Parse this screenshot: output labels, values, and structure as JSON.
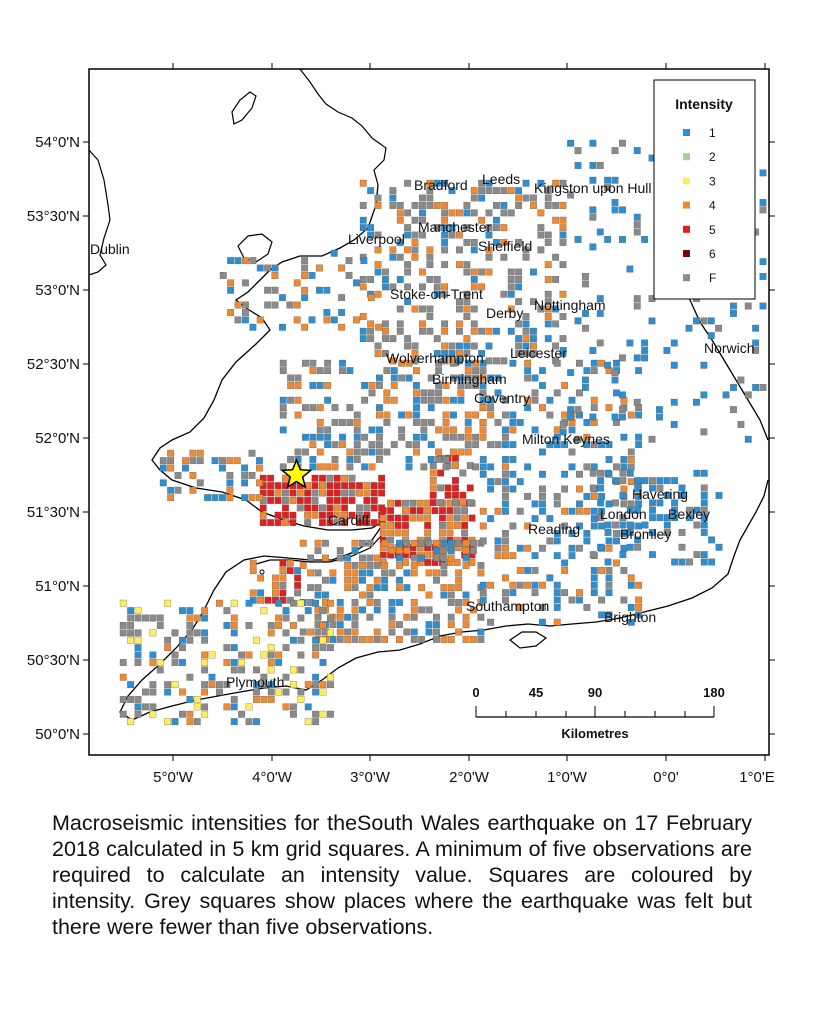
{
  "map": {
    "lat_labels": [
      "54°0'N",
      "53°30'N",
      "53°0'N",
      "52°30'N",
      "52°0'N",
      "51°30'N",
      "51°0'N",
      "50°30'N",
      "50°0'N"
    ],
    "lon_labels": [
      "5°0'W",
      "4°0'W",
      "3°0'W",
      "2°0'W",
      "1°0'W",
      "0°0'",
      "1°0'E"
    ],
    "places": [
      "Dublin",
      "Bradford",
      "Leeds",
      "Kingston upon Hull",
      "Manchester",
      "Liverpool",
      "Sheffield",
      "Stoke-on-Trent",
      "Nottingham",
      "Derby",
      "Norwich",
      "Wolverhampton",
      "Leicester",
      "Birmingham",
      "Coventry",
      "Milton Keynes",
      "Havering",
      "London",
      "Bexley",
      "Cardiff",
      "Reading",
      "Bromley",
      "Southampton",
      "Brighton",
      "Plymouth"
    ],
    "epicenter": {
      "lon": -3.75,
      "lat": 51.75
    }
  },
  "legend": {
    "title": "Intensity",
    "items": [
      {
        "label": "1",
        "color": "#2e8fd0"
      },
      {
        "label": "2",
        "color": "#a8cf9a"
      },
      {
        "label": "3",
        "color": "#ffee5a"
      },
      {
        "label": "4",
        "color": "#f08a32"
      },
      {
        "label": "5",
        "color": "#e0201e"
      },
      {
        "label": "6",
        "color": "#7a0808"
      },
      {
        "label": "F",
        "color": "#8a8a8a"
      }
    ]
  },
  "scale_bar": {
    "labels": [
      "0",
      "45",
      "90",
      "180"
    ],
    "unit": "Kilometres"
  },
  "caption": "Macroseismic intensities for theSouth Wales earthquake on 17 February 2018 calculated in 5 km grid squares. A minimum of five observations are required to calculate an intensity value. Squares are coloured by intensity. Grey squares show places where the earthquake was felt but there were fewer than five observations."
}
